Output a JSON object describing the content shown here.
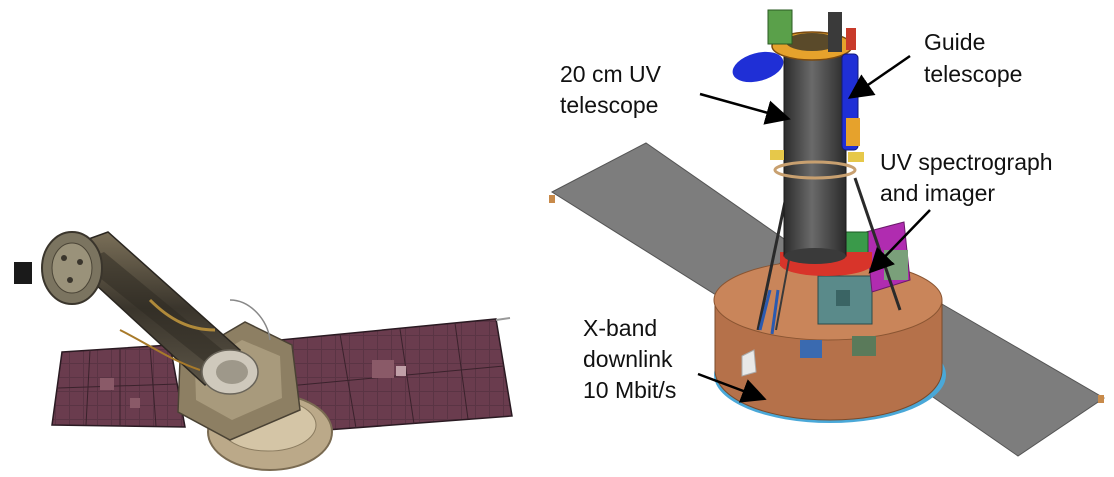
{
  "callouts": {
    "uv_telescope": {
      "lines": [
        "20 cm UV",
        "telescope"
      ]
    },
    "guide_telescope": {
      "lines": [
        "Guide",
        "telescope"
      ]
    },
    "spectrograph": {
      "lines": [
        "UV spectrograph",
        "and imager"
      ]
    },
    "downlink": {
      "lines": [
        "X-band",
        "downlink",
        "10 Mbit/s"
      ]
    }
  },
  "colors": {
    "solar_panel_photo": "#5a3444",
    "solar_panel_diagram": "#7d7d7d",
    "telescope_tube": "#4a4a4a",
    "guide_telescope": "#1f2fd6",
    "red_ring": "#d8342a",
    "bus_brown": "#b5714a",
    "bus_blue_rim": "#4aa8d8",
    "spectrograph_box": "#5a8a8a",
    "magenta_box": "#b02cb0"
  },
  "icons": [
    "spacecraft-photo",
    "spacecraft-diagram",
    "pointer-arrow"
  ]
}
